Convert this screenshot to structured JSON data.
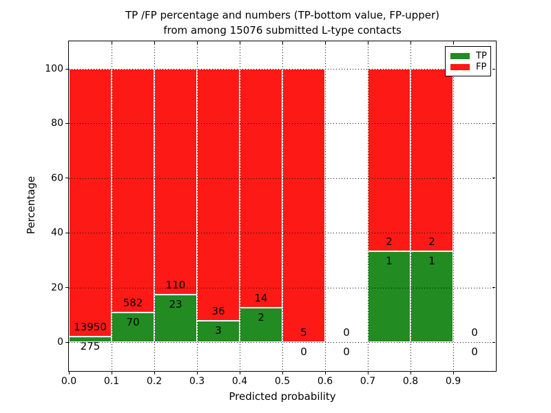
{
  "chart_data": {
    "type": "bar",
    "stacking": "percentage",
    "title_line1": "TP /FP percentage and numbers (TP-bottom value, FP-upper)",
    "title_line2": "from among 15076 submitted L-type contacts",
    "xlabel": "Predicted probability",
    "ylabel": "Percentage",
    "total_submitted_contacts": 15076,
    "x_tick_labels": [
      "0.0",
      "0.1",
      "0.2",
      "0.3",
      "0.4",
      "0.5",
      "0.6",
      "0.7",
      "0.8",
      "0.9"
    ],
    "x_tick_values": [
      0.0,
      0.1,
      0.2,
      0.3,
      0.4,
      0.5,
      0.6,
      0.7,
      0.8,
      0.9
    ],
    "y_tick_values": [
      0,
      20,
      40,
      60,
      80,
      100
    ],
    "xlim": [
      0.0,
      1.0
    ],
    "ylim": [
      -10.5,
      110.1
    ],
    "grid": true,
    "legend": {
      "position": "upper right",
      "items": [
        {
          "label": "TP",
          "color": "#228B22"
        },
        {
          "label": "FP",
          "color": "#FD1A16"
        }
      ]
    },
    "bins": [
      {
        "range": [
          0.0,
          0.1
        ],
        "tp": 275,
        "fp": 13950
      },
      {
        "range": [
          0.1,
          0.2
        ],
        "tp": 70,
        "fp": 582
      },
      {
        "range": [
          0.2,
          0.3
        ],
        "tp": 23,
        "fp": 110
      },
      {
        "range": [
          0.3,
          0.4
        ],
        "tp": 3,
        "fp": 36
      },
      {
        "range": [
          0.4,
          0.5
        ],
        "tp": 2,
        "fp": 14
      },
      {
        "range": [
          0.5,
          0.6
        ],
        "tp": 0,
        "fp": 5
      },
      {
        "range": [
          0.6,
          0.7
        ],
        "tp": 0,
        "fp": 0
      },
      {
        "range": [
          0.7,
          0.8
        ],
        "tp": 1,
        "fp": 2
      },
      {
        "range": [
          0.8,
          0.9
        ],
        "tp": 1,
        "fp": 2
      },
      {
        "range": [
          0.9,
          1.0
        ],
        "tp": 0,
        "fp": 0
      }
    ]
  },
  "colors": {
    "tp": "#228B22",
    "fp": "#FD1A16",
    "axis": "#000000",
    "background": "#FFFFFF"
  }
}
